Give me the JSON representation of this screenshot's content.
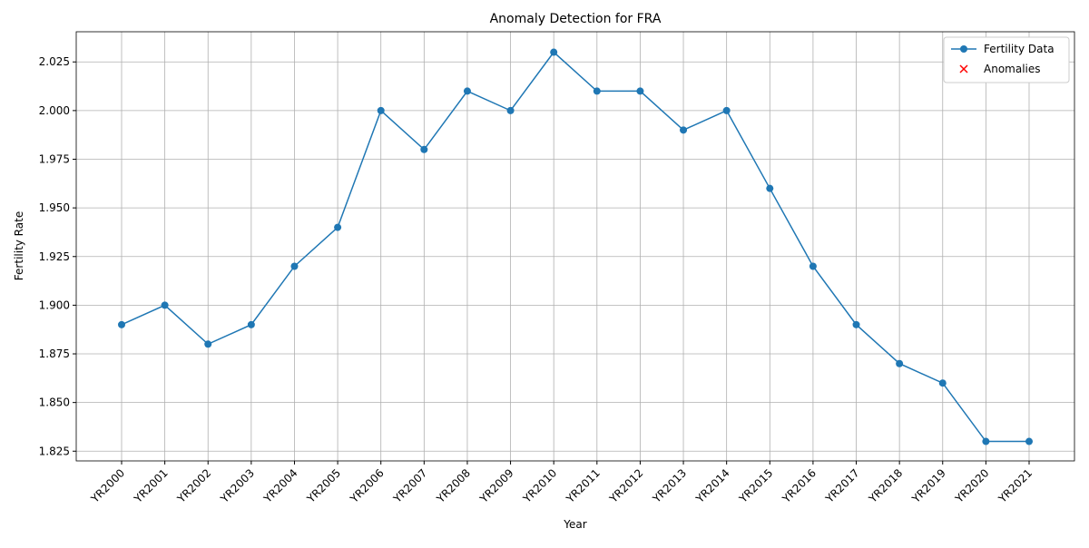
{
  "chart_data": {
    "type": "line",
    "title": "Anomaly Detection for FRA",
    "x_label": "Year",
    "y_label": "Fertility Rate",
    "categories": [
      "YR2000",
      "YR2001",
      "YR2002",
      "YR2003",
      "YR2004",
      "YR2005",
      "YR2006",
      "YR2007",
      "YR2008",
      "YR2009",
      "YR2010",
      "YR2011",
      "YR2012",
      "YR2013",
      "YR2014",
      "YR2015",
      "YR2016",
      "YR2017",
      "YR2018",
      "YR2019",
      "YR2020",
      "YR2021"
    ],
    "series": [
      {
        "name": "Fertility Data",
        "color": "#1f77b4",
        "marker": "o",
        "values": [
          1.89,
          1.9,
          1.88,
          1.89,
          1.92,
          1.94,
          2.0,
          1.98,
          2.01,
          2.0,
          2.03,
          2.01,
          2.01,
          1.99,
          2.0,
          1.96,
          1.92,
          1.89,
          1.87,
          1.86,
          1.83,
          1.83
        ]
      },
      {
        "name": "Anomalies",
        "color": "#ff0000",
        "marker": "x",
        "values": [
          null,
          null,
          null,
          null,
          null,
          null,
          null,
          null,
          null,
          null,
          null,
          null,
          null,
          null,
          null,
          null,
          null,
          null,
          null,
          null,
          null,
          null
        ]
      }
    ],
    "ylim": [
      1.82,
      2.0405
    ],
    "yticks": [
      1.825,
      {
        "value": 1.85,
        "label": "1.850"
      },
      1.875,
      {
        "value": 1.9,
        "label": "1.900"
      },
      1.925,
      {
        "value": 1.95,
        "label": "1.950"
      },
      1.975,
      {
        "value": 2.0,
        "label": "2.000"
      },
      2.025
    ],
    "grid": true,
    "legend": "upper right"
  }
}
